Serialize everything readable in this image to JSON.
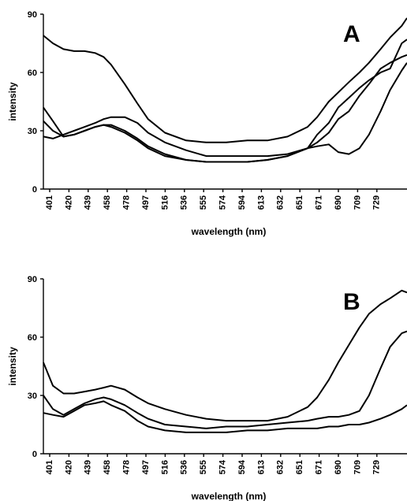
{
  "chart_data": [
    {
      "type": "line",
      "panel_label": "A",
      "xlabel": "wavelength (nm)",
      "ylabel": "intensity",
      "x_ticks": [
        "401",
        "420",
        "439",
        "458",
        "478",
        "497",
        "516",
        "536",
        "555",
        "574",
        "594",
        "613",
        "632",
        "651",
        "671",
        "690",
        "709",
        "729"
      ],
      "y_ticks": [
        "0",
        "30",
        "60",
        "90"
      ],
      "xlim": [
        401,
        745
      ],
      "ylim": [
        0,
        90
      ],
      "grid": false,
      "legend": "none",
      "series": [
        {
          "x": [
            401,
            410,
            420,
            430,
            440,
            450,
            458,
            465,
            478,
            490,
            500,
            516,
            536,
            555,
            574,
            594,
            613,
            632,
            651,
            660,
            671,
            690,
            700,
            709,
            720,
            729,
            740,
            745
          ],
          "values": [
            79,
            75,
            72,
            71,
            71,
            70,
            68,
            64,
            54,
            44,
            36,
            29,
            25,
            24,
            24,
            25,
            25,
            27,
            32,
            37,
            45,
            55,
            60,
            65,
            72,
            78,
            84,
            88
          ]
        },
        {
          "x": [
            401,
            410,
            420,
            430,
            440,
            450,
            458,
            465,
            478,
            490,
            500,
            516,
            536,
            555,
            574,
            594,
            613,
            632,
            651,
            660,
            671,
            680,
            690,
            700,
            709,
            720,
            729,
            740,
            745
          ],
          "values": [
            27,
            26,
            28,
            30,
            32,
            34,
            36,
            37,
            37,
            34,
            29,
            24,
            20,
            17,
            17,
            17,
            17,
            18,
            21,
            22,
            23,
            19,
            18,
            21,
            28,
            40,
            51,
            61,
            65
          ]
        },
        {
          "x": [
            401,
            410,
            420,
            430,
            440,
            450,
            458,
            465,
            478,
            490,
            500,
            516,
            536,
            555,
            574,
            594,
            613,
            632,
            651,
            660,
            671,
            680,
            690,
            700,
            709,
            720,
            729,
            740,
            745
          ],
          "values": [
            42,
            35,
            27,
            28,
            30,
            32,
            33,
            33,
            30,
            26,
            22,
            18,
            15,
            14,
            14,
            14,
            15,
            17,
            21,
            28,
            34,
            42,
            47,
            52,
            56,
            60,
            62,
            75,
            77
          ]
        },
        {
          "x": [
            401,
            410,
            420,
            430,
            440,
            450,
            458,
            465,
            478,
            490,
            500,
            516,
            536,
            555,
            574,
            594,
            613,
            632,
            651,
            660,
            671,
            680,
            690,
            700,
            709,
            720,
            729,
            740,
            745
          ],
          "values": [
            35,
            30,
            27,
            28,
            30,
            32,
            33,
            32,
            29,
            25,
            21,
            17,
            15,
            14,
            14,
            14,
            15,
            17,
            21,
            24,
            29,
            36,
            40,
            48,
            54,
            62,
            65,
            68,
            69
          ]
        }
      ]
    },
    {
      "type": "line",
      "panel_label": "B",
      "xlabel": "wavelength (nm)",
      "ylabel": "intensity",
      "x_ticks": [
        "401",
        "420",
        "439",
        "458",
        "478",
        "497",
        "516",
        "536",
        "555",
        "574",
        "594",
        "613",
        "632",
        "651",
        "671",
        "690",
        "709",
        "729"
      ],
      "y_ticks": [
        "0",
        "30",
        "60",
        "90"
      ],
      "xlim": [
        401,
        745
      ],
      "ylim": [
        0,
        90
      ],
      "grid": false,
      "legend": "none",
      "series": [
        {
          "x": [
            401,
            410,
            420,
            430,
            440,
            450,
            458,
            465,
            478,
            490,
            500,
            516,
            536,
            555,
            574,
            594,
            613,
            632,
            651,
            660,
            671,
            680,
            690,
            700,
            709,
            720,
            729,
            740,
            745
          ],
          "values": [
            47,
            35,
            31,
            31,
            32,
            33,
            34,
            35,
            33,
            29,
            26,
            23,
            20,
            18,
            17,
            17,
            17,
            19,
            24,
            29,
            38,
            47,
            56,
            65,
            72,
            77,
            80,
            84,
            83
          ]
        },
        {
          "x": [
            401,
            410,
            420,
            430,
            440,
            450,
            458,
            465,
            478,
            490,
            500,
            516,
            536,
            555,
            574,
            594,
            613,
            632,
            651,
            660,
            671,
            680,
            690,
            700,
            709,
            720,
            729,
            740,
            745
          ],
          "values": [
            30,
            23,
            20,
            23,
            26,
            28,
            29,
            28,
            25,
            21,
            18,
            15,
            14,
            13,
            14,
            14,
            15,
            16,
            17,
            18,
            19,
            19,
            20,
            22,
            30,
            44,
            55,
            62,
            63
          ]
        },
        {
          "x": [
            401,
            410,
            420,
            430,
            440,
            450,
            458,
            465,
            478,
            490,
            500,
            516,
            536,
            555,
            574,
            594,
            613,
            632,
            651,
            660,
            671,
            680,
            690,
            700,
            709,
            720,
            729,
            740,
            745
          ],
          "values": [
            21,
            20,
            19,
            22,
            25,
            26,
            27,
            25,
            22,
            17,
            14,
            12,
            11,
            11,
            11,
            12,
            12,
            13,
            13,
            13,
            14,
            14,
            15,
            15,
            16,
            18,
            20,
            23,
            25
          ]
        }
      ]
    }
  ]
}
